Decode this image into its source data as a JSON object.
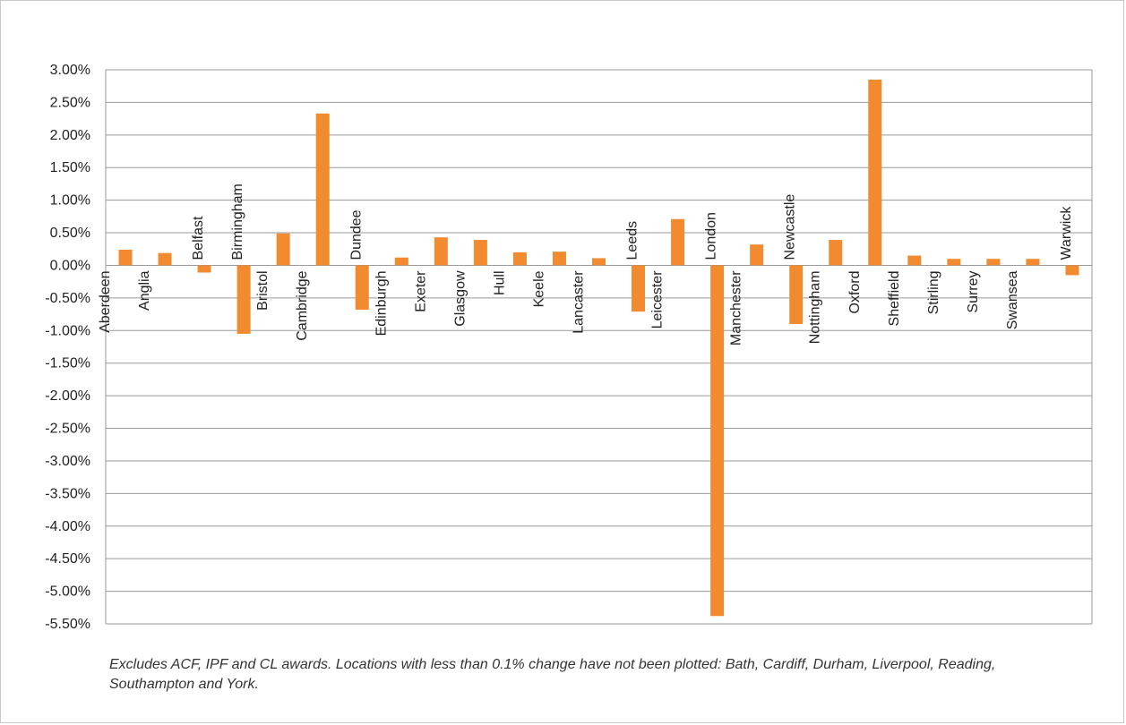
{
  "chart_data": {
    "type": "bar",
    "categories": [
      "Aberdeen",
      "Anglia",
      "Belfast",
      "Birmingham",
      "Bristol",
      "Cambridge",
      "Dundee",
      "Edinburgh",
      "Exeter",
      "Glasgow",
      "Hull",
      "Keele",
      "Lancaster",
      "Leeds",
      "Leicester",
      "London",
      "Manchester",
      "Newcastle",
      "Nottingham",
      "Oxford",
      "Sheffield",
      "Stirling",
      "Surrey",
      "Swansea",
      "Warwick"
    ],
    "values": [
      0.24,
      0.19,
      -0.11,
      -1.05,
      0.49,
      2.33,
      -0.68,
      0.12,
      0.43,
      0.39,
      0.2,
      0.21,
      0.11,
      -0.71,
      0.71,
      -5.38,
      0.32,
      -0.9,
      0.39,
      2.85,
      0.15,
      0.1,
      0.1,
      0.1,
      -0.15
    ],
    "ylim": [
      -5.5,
      3.0
    ],
    "yticks": [
      "3.00%",
      "2.50%",
      "2.00%",
      "1.50%",
      "1.00%",
      "0.50%",
      "0.00%",
      "-0.50%",
      "-1.00%",
      "-1.50%",
      "-2.00%",
      "-2.50%",
      "-3.00%",
      "-3.50%",
      "-4.00%",
      "-4.50%",
      "-5.00%",
      "-5.50%"
    ],
    "ytick_values": [
      3.0,
      2.5,
      2.0,
      1.5,
      1.0,
      0.5,
      0.0,
      -0.5,
      -1.0,
      -1.5,
      -2.0,
      -2.5,
      -3.0,
      -3.5,
      -4.0,
      -4.5,
      -5.0,
      -5.5
    ],
    "grid": true,
    "legend": "none",
    "bar_color": "#f28a30",
    "grid_color": "#9a9a9a"
  },
  "caption": "Excludes ACF, IPF and CL awards. Locations with less than 0.1% change have not been plotted: Bath, Cardiff, Durham, Liverpool, Reading, Southampton and York."
}
